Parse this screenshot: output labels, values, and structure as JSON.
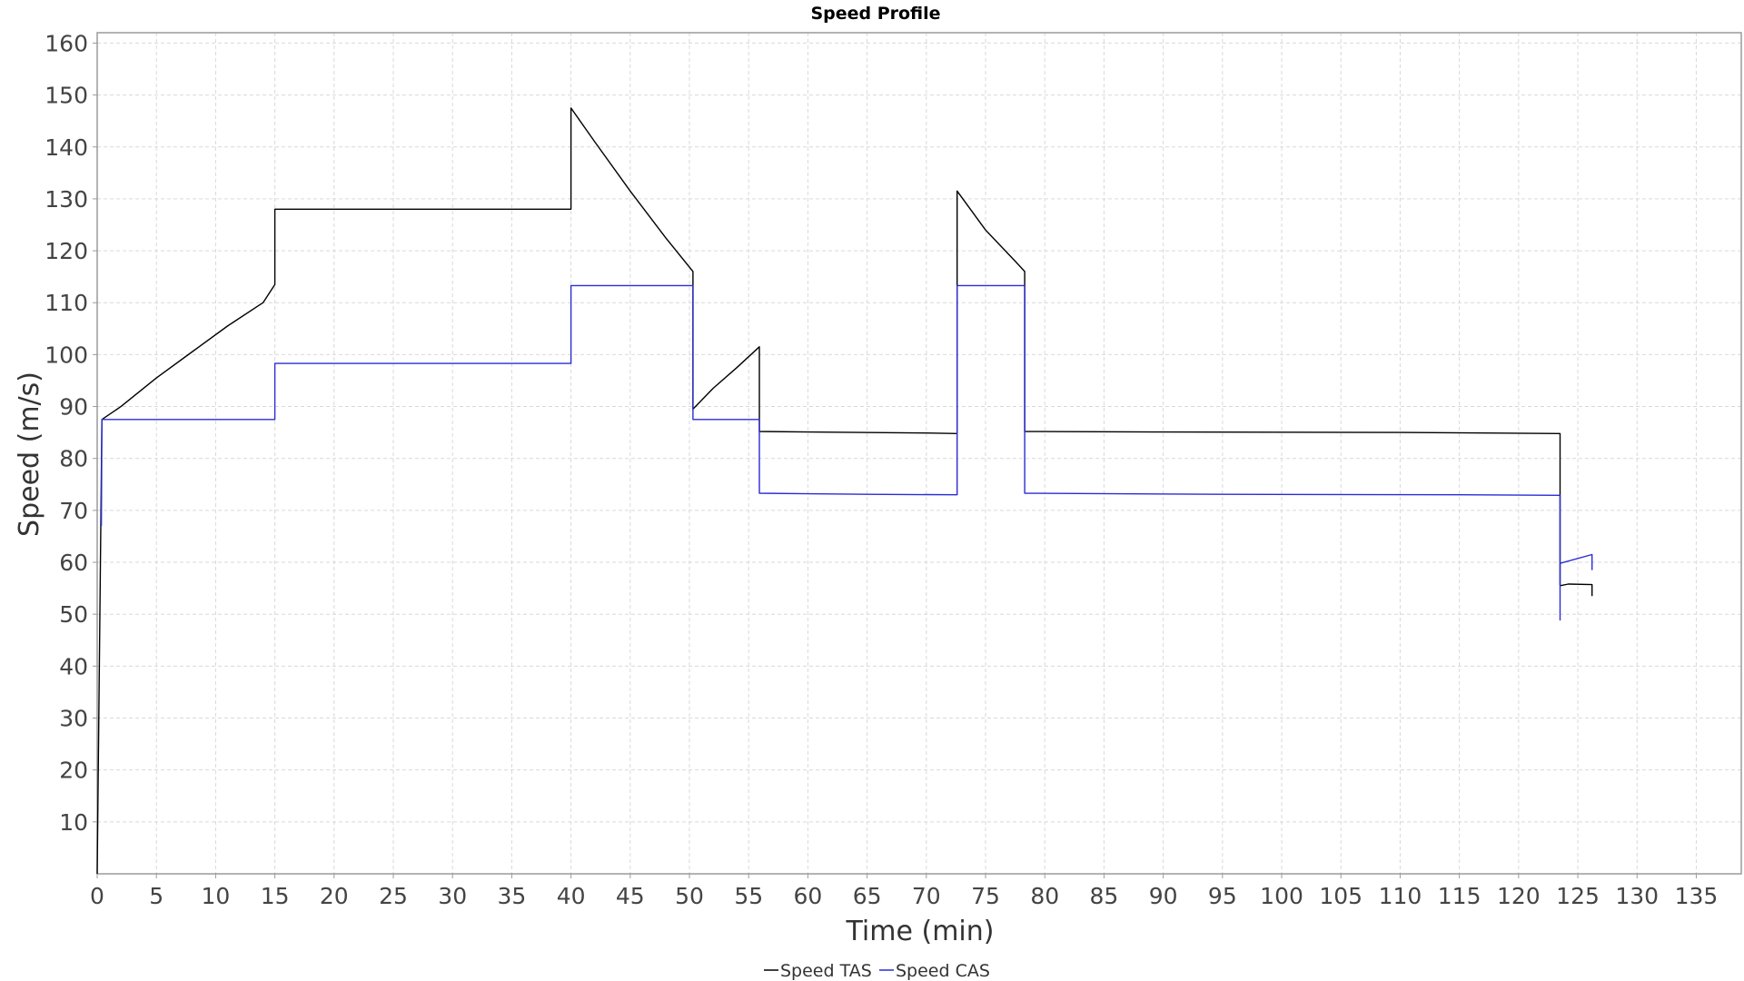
{
  "chart_data": {
    "type": "line",
    "title": "Speed Profile",
    "xlabel": "Time (min)",
    "ylabel": "Speed (m/s)",
    "xlim": [
      0,
      138.8
    ],
    "ylim": [
      0,
      162
    ],
    "x_ticks": [
      0,
      5,
      10,
      15,
      20,
      25,
      30,
      35,
      40,
      45,
      50,
      55,
      60,
      65,
      70,
      75,
      80,
      85,
      90,
      95,
      100,
      105,
      110,
      115,
      120,
      125,
      130,
      135
    ],
    "y_ticks": [
      10,
      20,
      30,
      40,
      50,
      60,
      70,
      80,
      90,
      100,
      110,
      120,
      130,
      140,
      150,
      160
    ],
    "grid": true,
    "legend_position": "bottom-center",
    "series": [
      {
        "name": "Speed TAS",
        "color": "#000000",
        "segments": [
          [
            [
              0,
              0
            ],
            [
              0.4,
              87.5
            ],
            [
              2,
              90
            ],
            [
              5,
              95.5
            ],
            [
              8,
              100.5
            ],
            [
              11,
              105.5
            ],
            [
              14,
              110
            ],
            [
              15,
              113.5
            ],
            [
              15,
              128
            ],
            [
              40,
              128
            ],
            [
              40,
              147.5
            ],
            [
              42,
              141
            ],
            [
              45,
              131.5
            ],
            [
              48,
              122.5
            ],
            [
              50.3,
              116
            ],
            [
              50.3,
              89.5
            ],
            [
              52,
              93.5
            ],
            [
              54,
              97.5
            ],
            [
              55.9,
              101.5
            ],
            [
              55.9,
              85.2
            ],
            [
              60,
              85.1
            ],
            [
              70,
              84.9
            ],
            [
              72.6,
              84.8
            ],
            [
              72.6,
              131.5
            ],
            [
              75,
              124
            ],
            [
              77.5,
              118
            ],
            [
              78.3,
              116
            ],
            [
              78.3,
              85.2
            ],
            [
              90,
              85.1
            ],
            [
              110,
              85
            ],
            [
              123.5,
              84.8
            ],
            [
              123.5,
              55.5
            ]
          ],
          [
            [
              123.5,
              55.5
            ],
            [
              124.2,
              55.8
            ],
            [
              126.2,
              55.7
            ],
            [
              126.2,
              53.5
            ]
          ]
        ]
      },
      {
        "name": "Speed CAS",
        "color": "#2b2bd6",
        "segments": [
          [
            [
              0.35,
              67
            ],
            [
              0.4,
              87.5
            ],
            [
              15,
              87.5
            ],
            [
              15,
              98.3
            ],
            [
              40,
              98.3
            ],
            [
              40,
              113.3
            ],
            [
              50.3,
              113.3
            ],
            [
              50.3,
              87.5
            ],
            [
              55.9,
              87.5
            ],
            [
              55.9,
              73.3
            ],
            [
              65,
              73.1
            ],
            [
              72.6,
              73
            ],
            [
              72.6,
              113.3
            ],
            [
              78.3,
              113.3
            ],
            [
              78.3,
              73.3
            ],
            [
              95,
              73.1
            ],
            [
              115,
              73
            ],
            [
              123.5,
              72.9
            ],
            [
              123.5,
              48.8
            ]
          ],
          [
            [
              123.5,
              59.8
            ],
            [
              126.2,
              61.5
            ],
            [
              126.2,
              58.5
            ]
          ]
        ]
      }
    ]
  }
}
